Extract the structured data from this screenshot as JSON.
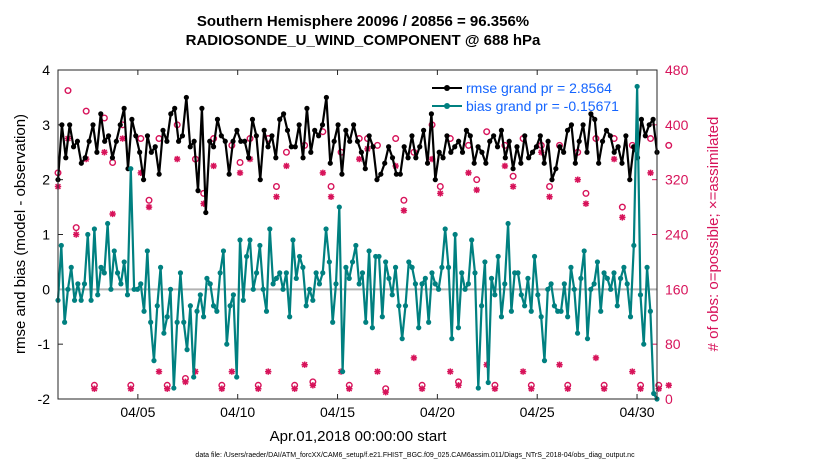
{
  "chart_data": {
    "type": "line",
    "title": "Southern Hemisphere 20096 / 20856 = 96.356%",
    "subtitle": "RADIOSONDE_U_WIND_COMPONENT @ 688 hPa",
    "xlabel": "Apr.01,2018 00:00:00 start",
    "ylabel": "rmse and bias (model - observation)",
    "y2label": "# of obs: o=possible; ×=assimilated",
    "xlim": [
      1,
      31
    ],
    "ylim": [
      -2,
      4
    ],
    "y2lim": [
      0,
      480
    ],
    "x_ticks": [
      5,
      10,
      15,
      20,
      25,
      30
    ],
    "x_tick_labels": [
      "04/05",
      "04/10",
      "04/15",
      "04/20",
      "04/25",
      "04/30"
    ],
    "y_ticks": [
      -2,
      -1,
      0,
      1,
      2,
      3,
      4
    ],
    "y_tick_labels": [
      "-2",
      "-1",
      "0",
      "1",
      "2",
      "3",
      "4"
    ],
    "y2_ticks": [
      0,
      80,
      160,
      240,
      320,
      400,
      480
    ],
    "y2_tick_labels": [
      "0",
      "80",
      "160",
      "240",
      "320",
      "400",
      "480"
    ],
    "colors": {
      "rmse": "#000000",
      "bias": "#008080",
      "obs": "#d7135a",
      "zero": "#b3b3b3",
      "legend": "#1565ff"
    },
    "legend": [
      {
        "name": "rmse grand pr = 2.8564",
        "color": "#000000"
      },
      {
        "name": "bias grand pr = -0.15671",
        "color": "#008080"
      }
    ],
    "series": [
      {
        "name": "rmse",
        "axis": "left",
        "values": [
          2.0,
          3.0,
          2.4,
          3.0,
          2.6,
          2.7,
          2.3,
          2.4,
          2.7,
          3.0,
          2.5,
          3.2,
          2.7,
          2.8,
          2.4,
          2.7,
          3.0,
          3.3,
          2.2,
          3.1,
          2.8,
          2.5,
          2.0,
          2.8,
          2.5,
          2.6,
          2.1,
          2.9,
          2.7,
          3.2,
          3.3,
          2.7,
          2.8,
          3.5,
          2.6,
          2.7,
          1.8,
          3.3,
          1.4,
          2.7,
          2.6,
          3.1,
          2.8,
          2.7,
          2.1,
          2.7,
          2.9,
          2.7,
          2.7,
          2.4,
          3.1,
          2.8,
          2.0,
          2.9,
          2.6,
          2.8,
          2.4,
          3.1,
          3.2,
          2.9,
          2.6,
          2.6,
          3.0,
          2.4,
          3.3,
          2.5,
          2.9,
          2.8,
          3.0,
          3.5,
          2.3,
          2.7,
          3.0,
          2.1,
          2.9,
          2.7,
          3.0,
          2.7,
          2.5,
          2.2,
          2.8,
          2.6,
          2.0,
          2.1,
          2.3,
          2.6,
          2.4,
          2.1,
          2.1,
          2.6,
          2.4,
          2.8,
          2.4,
          2.6,
          2.9,
          2.3,
          3.2,
          2.0,
          2.5,
          2.4,
          2.8,
          2.5,
          2.6,
          2.7,
          2.5,
          2.9,
          2.8,
          2.3,
          2.6,
          2.5,
          2.3,
          2.7,
          2.8,
          2.6,
          2.9,
          2.4,
          2.7,
          2.2,
          2.6,
          2.3,
          2.8,
          2.4,
          2.5,
          2.6,
          2.8,
          2.3,
          2.7,
          2.0,
          2.2,
          2.6,
          2.5,
          2.9,
          3.0,
          2.3,
          2.7,
          3.0,
          2.5,
          3.2,
          3.1,
          2.3,
          2.7,
          2.9,
          2.8,
          2.5,
          2.6,
          2.3,
          2.8,
          2.0,
          2.6,
          2.4,
          3.1,
          2.8,
          3.0,
          3.1,
          2.5
        ]
      },
      {
        "name": "bias",
        "axis": "left",
        "values": [
          -0.2,
          0.8,
          -0.6,
          0.0,
          0.4,
          -0.2,
          0.1,
          -0.2,
          0.1,
          1.0,
          -0.2,
          1.1,
          -0.1,
          0.4,
          0.3,
          1.2,
          0.0,
          0.7,
          0.3,
          0.1,
          0.5,
          -0.1,
          2.2,
          0.0,
          0.0,
          0.1,
          -0.4,
          0.7,
          -0.6,
          -1.3,
          -0.3,
          0.4,
          -0.8,
          -0.5,
          0.0,
          -1.8,
          -0.6,
          0.3,
          -0.6,
          -1.1,
          -0.3,
          -1.6,
          -0.4,
          -0.1,
          -0.5,
          0.2,
          0.1,
          -0.3,
          -0.4,
          0.3,
          0.7,
          -1.0,
          -0.3,
          -0.1,
          -1.6,
          0.9,
          -0.2,
          0.6,
          0.9,
          0.0,
          0.3,
          0.8,
          0.0,
          -0.4,
          1.1,
          0.1,
          0.2,
          0.3,
          0.0,
          0.3,
          -0.5,
          0.9,
          0.2,
          0.6,
          0.4,
          -0.3,
          0.0,
          -0.2,
          0.3,
          0.1,
          0.3,
          1.1,
          0.5,
          -0.6,
          0.1,
          1.5,
          -1.5,
          0.4,
          0.2,
          0.5,
          0.8,
          0.1,
          0.3,
          -0.6,
          0.7,
          -0.7,
          0.6,
          0.6,
          -0.5,
          0.5,
          0.2,
          -0.1,
          0.4,
          -0.3,
          -0.9,
          -0.3,
          0.5,
          0.4,
          0.1,
          -0.7,
          0.1,
          0.2,
          -0.6,
          0.3,
          0.1,
          0.0,
          0.4,
          1.1,
          0.4,
          -0.9,
          1.0,
          -0.7,
          0.3,
          0.0,
          0.1,
          0.9,
          0.3,
          -1.8,
          -0.3,
          0.5,
          -1.7,
          0.2,
          -0.1,
          0.6,
          -0.5,
          0.1,
          1.2,
          -0.4,
          0.3,
          0.3,
          -0.1,
          -0.3,
          0.2,
          -0.4,
          0.6,
          -0.1,
          -0.5,
          -1.3,
          0.0,
          0.1,
          -0.3,
          -0.4,
          -0.4,
          0.1,
          -0.5,
          0.4,
          0.0,
          -0.8,
          0.2,
          0.7,
          -0.9,
          0.0,
          0.1,
          0.5,
          -0.4,
          0.3,
          0.2,
          0.0,
          0.3,
          -0.3,
          0.2,
          0.4,
          0.1,
          -0.5,
          0.8,
          3.7,
          -0.1,
          -1.0,
          0.4,
          -0.4,
          -1.9,
          -2.0
        ]
      }
    ],
    "obs_possible": {
      "axis": "right",
      "day0": [
        330,
        250,
        20,
        345,
        20,
        290,
        20,
        30,
        300,
        20,
        345,
        20,
        310,
        20,
        25,
        310,
        20,
        380,
        15,
        290,
        20,
        310,
        25,
        320,
        20,
        325,
        20,
        310,
        20,
        300,
        20,
        280,
        20,
        20
      ],
      "day12": [
        450,
        420,
        410,
        400,
        380,
        380,
        400,
        350,
        380,
        370,
        380,
        380,
        360,
        370,
        390,
        360,
        380,
        370,
        380,
        360,
        400,
        380,
        370,
        390,
        370,
        380,
        370,
        370,
        360,
        380,
        380,
        370,
        380,
        370
      ]
    },
    "obs_assimilated": {
      "axis": "right",
      "day0": [
        310,
        240,
        15,
        270,
        15,
        280,
        15,
        25,
        285,
        15,
        330,
        15,
        295,
        15,
        20,
        295,
        15,
        365,
        10,
        275,
        15,
        300,
        20,
        305,
        15,
        310,
        15,
        295,
        15,
        285,
        15,
        265,
        15,
        15
      ],
      "day12": [
        380,
        350,
        360,
        380,
        330,
        40,
        350,
        40,
        340,
        40,
        350,
        40,
        340,
        50,
        330,
        40,
        350,
        40,
        340,
        60,
        350,
        40,
        330,
        50,
        340,
        40,
        360,
        50,
        320,
        60,
        350,
        40,
        330,
        20
      ]
    }
  }
}
